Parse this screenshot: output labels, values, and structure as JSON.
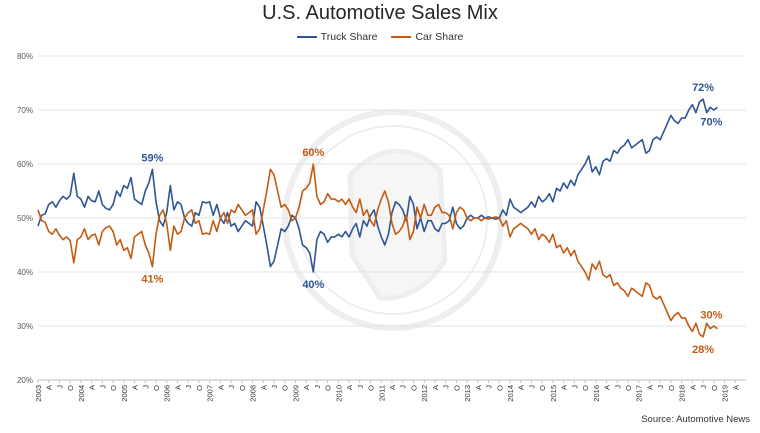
{
  "chart_data": {
    "type": "line",
    "title": "U.S. Automotive Sales Mix",
    "source": "Source: Automotive News",
    "ylim": [
      20,
      80
    ],
    "yticks": [
      "20%",
      "30%",
      "40%",
      "50%",
      "60%",
      "70%",
      "80%"
    ],
    "xlim": [
      2003.0,
      2019.5
    ],
    "x_tick_labels": [
      "2003",
      "A",
      "J",
      "O",
      "2004",
      "A",
      "J",
      "O",
      "2005",
      "A",
      "J",
      "O",
      "2006",
      "A",
      "J",
      "O",
      "2007",
      "A",
      "J",
      "O",
      "2008",
      "A",
      "J",
      "O",
      "2009",
      "A",
      "J",
      "O",
      "2010",
      "A",
      "J",
      "O",
      "2011",
      "A",
      "J",
      "O",
      "2012",
      "A",
      "J",
      "O",
      "2013",
      "A",
      "J",
      "O",
      "2014",
      "A",
      "J",
      "O",
      "2015",
      "A",
      "J",
      "O",
      "2016",
      "A",
      "J",
      "O",
      "2017",
      "A",
      "J",
      "O",
      "2018",
      "A",
      "J",
      "O",
      "2019",
      "A"
    ],
    "legend_position": "top-center",
    "grid": "horizontal",
    "series": [
      {
        "name": "Truck Share",
        "color": "#2f5597",
        "start": "2003-01",
        "step": "monthly",
        "values": [
          48.5,
          50.5,
          50.8,
          52.5,
          53.0,
          52.0,
          53.2,
          54.0,
          53.5,
          54.2,
          58.3,
          54.0,
          53.5,
          52.0,
          54.0,
          53.2,
          53.0,
          55.0,
          52.5,
          51.8,
          51.5,
          52.5,
          55.0,
          54.0,
          56.0,
          55.5,
          57.5,
          53.5,
          53.0,
          52.5,
          55.0,
          56.5,
          59.0,
          53.0,
          49.5,
          48.5,
          51.0,
          56.0,
          51.5,
          53.0,
          52.5,
          50.0,
          49.0,
          48.5,
          51.0,
          50.5,
          53.0,
          52.8,
          53.0,
          50.5,
          52.5,
          50.0,
          49.0,
          51.0,
          48.5,
          49.0,
          47.5,
          48.5,
          49.5,
          49.0,
          48.5,
          53.0,
          52.0,
          48.5,
          45.0,
          41.0,
          42.0,
          45.0,
          48.0,
          47.5,
          48.5,
          50.5,
          50.0,
          48.0,
          45.0,
          44.5,
          43.5,
          40.0,
          46.0,
          47.5,
          47.0,
          45.5,
          46.5,
          46.5,
          47.0,
          46.5,
          47.5,
          46.5,
          48.0,
          49.0,
          46.5,
          49.5,
          48.5,
          50.5,
          51.5,
          48.5,
          46.5,
          45.0,
          47.0,
          51.0,
          53.0,
          52.5,
          51.5,
          49.5,
          54.0,
          52.5,
          48.0,
          50.0,
          47.5,
          49.5,
          49.5,
          48.0,
          47.5,
          49.0,
          49.0,
          49.5,
          52.0,
          49.0,
          48.0,
          48.5,
          50.0,
          50.5,
          50.0,
          50.0,
          50.5,
          50.0,
          50.2,
          50.0,
          49.8,
          50.0,
          51.5,
          50.5,
          53.5,
          52.0,
          51.5,
          51.0,
          51.5,
          52.0,
          53.0,
          52.0,
          54.0,
          53.0,
          53.5,
          54.5,
          53.0,
          55.5,
          55.0,
          56.5,
          55.5,
          57.0,
          56.0,
          58.0,
          59.0,
          60.0,
          61.5,
          58.5,
          59.5,
          58.0,
          60.5,
          61.0,
          60.5,
          62.5,
          62.0,
          63.0,
          63.5,
          64.5,
          63.0,
          63.5,
          64.0,
          64.5,
          62.0,
          62.5,
          64.5,
          65.0,
          64.5,
          66.0,
          67.5,
          69.0,
          68.0,
          67.5,
          68.5,
          68.5,
          70.0,
          71.0,
          69.5,
          71.5,
          72.0,
          69.5,
          70.5,
          70.0,
          70.5
        ]
      },
      {
        "name": "Car Share",
        "color": "#c55a11",
        "start": "2003-01",
        "step": "monthly",
        "values": [
          51.5,
          49.5,
          49.2,
          47.5,
          47.0,
          48.0,
          46.8,
          46.0,
          46.5,
          45.8,
          41.7,
          46.0,
          46.5,
          48.0,
          46.0,
          46.8,
          47.0,
          45.0,
          47.5,
          48.2,
          48.5,
          47.5,
          45.0,
          46.0,
          44.0,
          44.5,
          42.5,
          46.5,
          47.0,
          47.5,
          45.0,
          43.5,
          41.0,
          47.0,
          50.5,
          51.5,
          49.0,
          44.0,
          48.5,
          47.0,
          47.5,
          50.0,
          51.0,
          51.5,
          49.0,
          49.5,
          47.0,
          47.2,
          47.0,
          49.5,
          47.5,
          50.0,
          51.0,
          49.0,
          51.5,
          51.0,
          52.5,
          51.5,
          50.5,
          51.0,
          51.5,
          47.0,
          48.0,
          51.5,
          55.0,
          59.0,
          58.0,
          55.0,
          52.0,
          52.5,
          51.5,
          49.5,
          50.0,
          52.0,
          55.0,
          55.5,
          56.5,
          60.0,
          54.0,
          52.5,
          53.0,
          54.5,
          53.5,
          53.5,
          53.0,
          53.5,
          52.5,
          53.5,
          52.0,
          51.0,
          53.5,
          50.5,
          51.5,
          49.5,
          48.5,
          51.5,
          53.5,
          55.0,
          53.0,
          49.0,
          47.0,
          47.5,
          48.5,
          50.5,
          46.0,
          47.5,
          52.0,
          50.0,
          52.5,
          50.5,
          50.5,
          52.0,
          52.5,
          51.0,
          51.0,
          50.5,
          48.0,
          51.0,
          52.0,
          51.5,
          50.0,
          49.5,
          50.0,
          50.0,
          49.5,
          50.0,
          49.8,
          50.0,
          50.2,
          50.0,
          48.5,
          49.5,
          46.5,
          48.0,
          48.5,
          49.0,
          48.5,
          48.0,
          47.0,
          48.0,
          46.0,
          47.0,
          46.5,
          45.5,
          47.0,
          44.5,
          45.0,
          43.5,
          44.5,
          43.0,
          44.0,
          42.0,
          41.0,
          40.0,
          38.5,
          41.5,
          40.5,
          42.0,
          39.5,
          39.0,
          39.5,
          37.5,
          38.0,
          37.0,
          36.5,
          35.5,
          37.0,
          36.5,
          36.0,
          35.5,
          38.0,
          37.5,
          35.5,
          35.0,
          35.5,
          34.0,
          32.5,
          31.0,
          32.0,
          32.5,
          31.5,
          31.5,
          30.0,
          29.0,
          30.5,
          28.5,
          28.0,
          30.5,
          29.5,
          30.0,
          29.5
        ]
      }
    ],
    "annotations": [
      {
        "text": "59%",
        "series": "Truck Share"
      },
      {
        "text": "41%",
        "series": "Car Share"
      },
      {
        "text": "60%",
        "series": "Car Share"
      },
      {
        "text": "40%",
        "series": "Truck Share"
      },
      {
        "text": "72%",
        "series": "Truck Share"
      },
      {
        "text": "70%",
        "series": "Truck Share"
      },
      {
        "text": "30%",
        "series": "Car Share"
      },
      {
        "text": "28%",
        "series": "Car Share"
      }
    ]
  }
}
